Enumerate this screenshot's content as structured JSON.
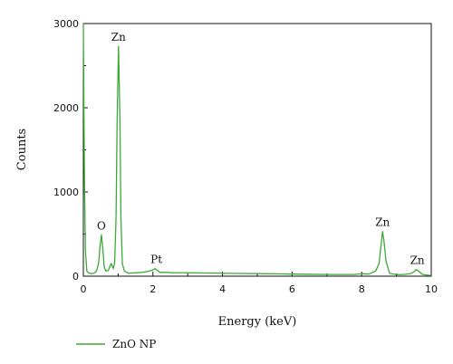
{
  "chart_data": {
    "type": "line",
    "xlabel": "Energy (keV)",
    "ylabel": "Counts",
    "xlim": [
      0,
      10
    ],
    "ylim": [
      0,
      3000
    ],
    "x_ticks": [
      0,
      2,
      4,
      6,
      8,
      10
    ],
    "y_ticks": [
      0,
      1000,
      2000,
      3000
    ],
    "grid": false,
    "legend_placement": "bottom-left",
    "series": [
      {
        "name": "ZnO NP",
        "color": "#3aaa35",
        "x": [
          0.0,
          0.03,
          0.06,
          0.1,
          0.15,
          0.22,
          0.3,
          0.38,
          0.44,
          0.48,
          0.52,
          0.56,
          0.6,
          0.65,
          0.72,
          0.8,
          0.86,
          0.9,
          0.94,
          0.97,
          1.01,
          1.05,
          1.08,
          1.12,
          1.18,
          1.3,
          1.5,
          1.7,
          1.9,
          2.0,
          2.06,
          2.12,
          2.2,
          2.35,
          2.6,
          3.0,
          3.5,
          4.0,
          4.5,
          5.0,
          5.5,
          6.0,
          6.5,
          7.0,
          7.5,
          7.8,
          8.0,
          8.2,
          8.4,
          8.5,
          8.56,
          8.6,
          8.64,
          8.7,
          8.8,
          9.0,
          9.2,
          9.4,
          9.5,
          9.57,
          9.65,
          9.75,
          9.9,
          10.0
        ],
        "y": [
          3000,
          1200,
          300,
          60,
          40,
          30,
          35,
          60,
          160,
          360,
          490,
          320,
          110,
          60,
          70,
          150,
          90,
          160,
          700,
          1800,
          2730,
          1900,
          700,
          150,
          60,
          35,
          40,
          45,
          60,
          75,
          90,
          70,
          45,
          45,
          40,
          40,
          38,
          35,
          32,
          30,
          28,
          25,
          22,
          20,
          20,
          20,
          30,
          25,
          60,
          150,
          380,
          530,
          420,
          180,
          35,
          18,
          20,
          30,
          50,
          80,
          55,
          20,
          12,
          10
        ]
      }
    ],
    "annotations": [
      {
        "text": "Zn",
        "x": 1.01,
        "y": 2730
      },
      {
        "text": "O",
        "x": 0.52,
        "y": 490
      },
      {
        "text": "Pt",
        "x": 2.1,
        "y": 90
      },
      {
        "text": "Zn",
        "x": 8.6,
        "y": 530
      },
      {
        "text": "Zn",
        "x": 9.6,
        "y": 80
      }
    ]
  }
}
